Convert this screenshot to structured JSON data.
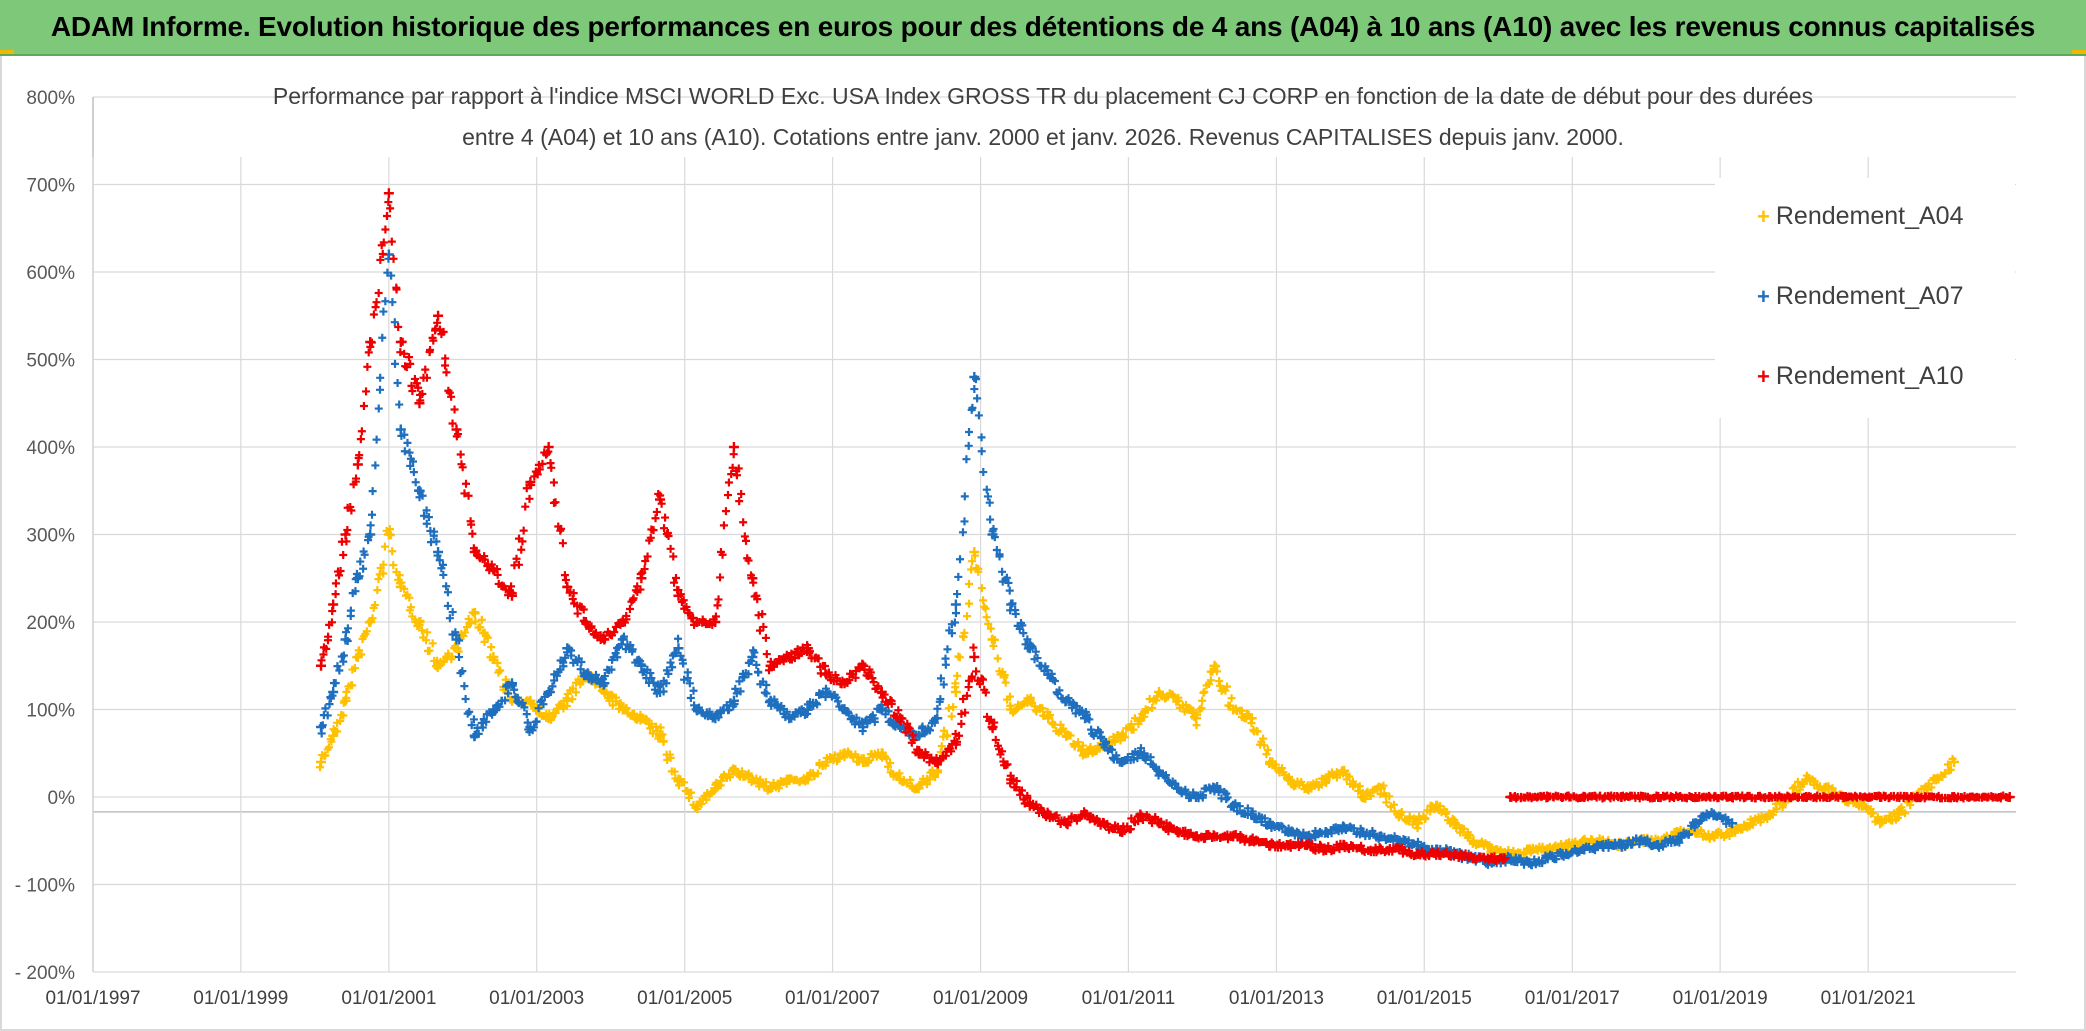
{
  "banner": {
    "title": "ADAM Informe. Evolution historique des performances en euros pour des détentions de 4 ans (A04) à 10 ans (A10) avec les revenus connus capitalisés"
  },
  "colors": {
    "banner_bg": "#7ec87a",
    "A04": "#ffc000",
    "A07": "#1f6fbf",
    "A10": "#ee0000",
    "grid": "#d9d9d9",
    "axis_text": "#595959"
  },
  "chart_data": {
    "type": "scatter",
    "title_lines": [
      "Performance par rapport à l'indice MSCI WORLD Exc. USA Index GROSS TR  du placement CJ CORP en fonction de la date de début pour des durées",
      "entre 4 (A04) et 10 ans (A10). Cotations entre janv. 2000 et janv. 2026. Revenus CAPITALISES depuis janv. 2000."
    ],
    "xlabel": "",
    "ylabel": "",
    "x_ticks": [
      "01/01/1997",
      "01/01/1999",
      "01/01/2001",
      "01/01/2003",
      "01/01/2005",
      "01/01/2007",
      "01/01/2009",
      "01/01/2011",
      "01/01/2013",
      "01/01/2015",
      "01/01/2017",
      "01/01/2019",
      "01/01/2021"
    ],
    "y_ticks": [
      "800%",
      "700%",
      "600%",
      "500%",
      "400%",
      "300%",
      "200%",
      "100%",
      "0%",
      "- 100%",
      "- 200%"
    ],
    "xlim": [
      "1997-01-01",
      "2023-01-01"
    ],
    "ylim": [
      -200,
      800
    ],
    "y_unit": "%",
    "grid": true,
    "legend_position": "top-right",
    "marker": "+",
    "series": [
      {
        "name": "Rendement_A04",
        "color": "#ffc000",
        "points": [
          [
            "2000-02-01",
            40
          ],
          [
            "2000-04-01",
            70
          ],
          [
            "2000-06-01",
            110
          ],
          [
            "2000-08-01",
            160
          ],
          [
            "2000-10-01",
            200
          ],
          [
            "2001-01-01",
            300
          ],
          [
            "2001-03-01",
            240
          ],
          [
            "2001-06-01",
            200
          ],
          [
            "2001-09-01",
            150
          ],
          [
            "2001-12-01",
            170
          ],
          [
            "2002-03-01",
            210
          ],
          [
            "2002-06-01",
            160
          ],
          [
            "2002-09-01",
            110
          ],
          [
            "2002-12-01",
            110
          ],
          [
            "2003-03-01",
            90
          ],
          [
            "2003-06-01",
            110
          ],
          [
            "2003-09-01",
            140
          ],
          [
            "2003-12-01",
            120
          ],
          [
            "2004-03-01",
            100
          ],
          [
            "2004-06-01",
            90
          ],
          [
            "2004-09-01",
            70
          ],
          [
            "2004-12-01",
            20
          ],
          [
            "2005-03-01",
            -10
          ],
          [
            "2005-06-01",
            10
          ],
          [
            "2005-09-01",
            30
          ],
          [
            "2005-12-01",
            20
          ],
          [
            "2006-03-01",
            10
          ],
          [
            "2006-06-01",
            20
          ],
          [
            "2006-09-01",
            20
          ],
          [
            "2006-12-01",
            40
          ],
          [
            "2007-03-01",
            50
          ],
          [
            "2007-06-01",
            40
          ],
          [
            "2007-09-01",
            50
          ],
          [
            "2007-12-01",
            20
          ],
          [
            "2008-03-01",
            10
          ],
          [
            "2008-06-01",
            30
          ],
          [
            "2008-09-01",
            120
          ],
          [
            "2008-12-01",
            280
          ],
          [
            "2009-03-01",
            180
          ],
          [
            "2009-06-01",
            100
          ],
          [
            "2009-09-01",
            110
          ],
          [
            "2009-12-01",
            90
          ],
          [
            "2010-03-01",
            70
          ],
          [
            "2010-06-01",
            50
          ],
          [
            "2010-09-01",
            60
          ],
          [
            "2010-12-01",
            70
          ],
          [
            "2011-03-01",
            90
          ],
          [
            "2011-06-01",
            120
          ],
          [
            "2011-09-01",
            110
          ],
          [
            "2011-12-01",
            90
          ],
          [
            "2012-03-01",
            150
          ],
          [
            "2012-06-01",
            100
          ],
          [
            "2012-09-01",
            90
          ],
          [
            "2012-12-01",
            40
          ],
          [
            "2013-03-01",
            20
          ],
          [
            "2013-06-01",
            10
          ],
          [
            "2013-09-01",
            20
          ],
          [
            "2013-12-01",
            30
          ],
          [
            "2014-03-01",
            0
          ],
          [
            "2014-06-01",
            10
          ],
          [
            "2014-09-01",
            -20
          ],
          [
            "2014-12-01",
            -30
          ],
          [
            "2015-03-01",
            -10
          ],
          [
            "2015-06-01",
            -30
          ],
          [
            "2015-09-01",
            -50
          ],
          [
            "2015-12-01",
            -60
          ],
          [
            "2016-03-01",
            -65
          ],
          [
            "2016-06-01",
            -60
          ],
          [
            "2016-09-01",
            -60
          ],
          [
            "2016-12-01",
            -55
          ],
          [
            "2017-03-01",
            -50
          ],
          [
            "2017-06-01",
            -50
          ],
          [
            "2017-09-01",
            -55
          ],
          [
            "2017-12-01",
            -50
          ],
          [
            "2018-03-01",
            -50
          ],
          [
            "2018-06-01",
            -40
          ],
          [
            "2018-09-01",
            -40
          ],
          [
            "2018-12-01",
            -45
          ],
          [
            "2019-03-01",
            -40
          ],
          [
            "2019-06-01",
            -30
          ],
          [
            "2019-09-01",
            -20
          ],
          [
            "2019-12-01",
            0
          ],
          [
            "2020-03-01",
            20
          ],
          [
            "2020-06-01",
            10
          ],
          [
            "2020-09-01",
            0
          ],
          [
            "2020-12-01",
            -10
          ],
          [
            "2021-03-01",
            -30
          ],
          [
            "2021-06-01",
            -20
          ],
          [
            "2021-09-01",
            0
          ],
          [
            "2021-12-01",
            20
          ],
          [
            "2022-03-01",
            40
          ]
        ]
      },
      {
        "name": "Rendement_A07",
        "color": "#1f6fbf",
        "points": [
          [
            "2000-02-01",
            80
          ],
          [
            "2000-04-01",
            120
          ],
          [
            "2000-06-01",
            180
          ],
          [
            "2000-08-01",
            250
          ],
          [
            "2000-10-01",
            300
          ],
          [
            "2001-01-01",
            620
          ],
          [
            "2001-03-01",
            420
          ],
          [
            "2001-06-01",
            350
          ],
          [
            "2001-09-01",
            280
          ],
          [
            "2001-12-01",
            180
          ],
          [
            "2002-03-01",
            70
          ],
          [
            "2002-06-01",
            100
          ],
          [
            "2002-09-01",
            130
          ],
          [
            "2002-12-01",
            80
          ],
          [
            "2003-03-01",
            120
          ],
          [
            "2003-06-01",
            170
          ],
          [
            "2003-09-01",
            140
          ],
          [
            "2003-12-01",
            130
          ],
          [
            "2004-03-01",
            180
          ],
          [
            "2004-06-01",
            150
          ],
          [
            "2004-09-01",
            120
          ],
          [
            "2004-12-01",
            170
          ],
          [
            "2005-03-01",
            100
          ],
          [
            "2005-06-01",
            90
          ],
          [
            "2005-09-01",
            110
          ],
          [
            "2005-12-01",
            160
          ],
          [
            "2006-03-01",
            110
          ],
          [
            "2006-06-01",
            90
          ],
          [
            "2006-09-01",
            100
          ],
          [
            "2006-12-01",
            120
          ],
          [
            "2007-03-01",
            100
          ],
          [
            "2007-06-01",
            80
          ],
          [
            "2007-09-01",
            100
          ],
          [
            "2007-12-01",
            80
          ],
          [
            "2008-03-01",
            70
          ],
          [
            "2008-06-01",
            90
          ],
          [
            "2008-09-01",
            220
          ],
          [
            "2008-12-01",
            480
          ],
          [
            "2009-03-01",
            300
          ],
          [
            "2009-06-01",
            220
          ],
          [
            "2009-09-01",
            170
          ],
          [
            "2009-12-01",
            140
          ],
          [
            "2010-03-01",
            110
          ],
          [
            "2010-06-01",
            90
          ],
          [
            "2010-09-01",
            60
          ],
          [
            "2010-12-01",
            40
          ],
          [
            "2011-03-01",
            50
          ],
          [
            "2011-06-01",
            30
          ],
          [
            "2011-09-01",
            10
          ],
          [
            "2011-12-01",
            0
          ],
          [
            "2012-03-01",
            10
          ],
          [
            "2012-06-01",
            -10
          ],
          [
            "2012-09-01",
            -20
          ],
          [
            "2012-12-01",
            -30
          ],
          [
            "2013-03-01",
            -40
          ],
          [
            "2013-06-01",
            -45
          ],
          [
            "2013-09-01",
            -40
          ],
          [
            "2013-12-01",
            -35
          ],
          [
            "2014-03-01",
            -40
          ],
          [
            "2014-06-01",
            -45
          ],
          [
            "2014-09-01",
            -50
          ],
          [
            "2014-12-01",
            -55
          ],
          [
            "2015-03-01",
            -60
          ],
          [
            "2015-06-01",
            -65
          ],
          [
            "2015-09-01",
            -70
          ],
          [
            "2015-12-01",
            -75
          ],
          [
            "2016-03-01",
            -70
          ],
          [
            "2016-06-01",
            -75
          ],
          [
            "2016-09-01",
            -70
          ],
          [
            "2016-12-01",
            -65
          ],
          [
            "2017-03-01",
            -60
          ],
          [
            "2017-06-01",
            -55
          ],
          [
            "2017-09-01",
            -55
          ],
          [
            "2017-12-01",
            -50
          ],
          [
            "2018-03-01",
            -55
          ],
          [
            "2018-06-01",
            -50
          ],
          [
            "2018-09-01",
            -30
          ],
          [
            "2018-12-01",
            -20
          ],
          [
            "2019-03-01",
            -30
          ]
        ]
      },
      {
        "name": "Rendement_A10",
        "color": "#ee0000",
        "points": [
          [
            "2000-02-01",
            150
          ],
          [
            "2000-04-01",
            220
          ],
          [
            "2000-06-01",
            300
          ],
          [
            "2000-08-01",
            380
          ],
          [
            "2000-10-01",
            520
          ],
          [
            "2001-01-01",
            690
          ],
          [
            "2001-03-01",
            520
          ],
          [
            "2001-06-01",
            450
          ],
          [
            "2001-09-01",
            550
          ],
          [
            "2001-12-01",
            420
          ],
          [
            "2002-03-01",
            280
          ],
          [
            "2002-06-01",
            260
          ],
          [
            "2002-09-01",
            230
          ],
          [
            "2002-12-01",
            360
          ],
          [
            "2003-03-01",
            400
          ],
          [
            "2003-06-01",
            240
          ],
          [
            "2003-09-01",
            200
          ],
          [
            "2003-12-01",
            180
          ],
          [
            "2004-03-01",
            200
          ],
          [
            "2004-06-01",
            250
          ],
          [
            "2004-09-01",
            340
          ],
          [
            "2004-12-01",
            230
          ],
          [
            "2005-03-01",
            200
          ],
          [
            "2005-06-01",
            200
          ],
          [
            "2005-09-01",
            400
          ],
          [
            "2005-12-01",
            250
          ],
          [
            "2006-03-01",
            150
          ],
          [
            "2006-06-01",
            160
          ],
          [
            "2006-09-01",
            170
          ],
          [
            "2006-12-01",
            140
          ],
          [
            "2007-03-01",
            130
          ],
          [
            "2007-06-01",
            150
          ],
          [
            "2007-09-01",
            120
          ],
          [
            "2007-12-01",
            90
          ],
          [
            "2008-03-01",
            50
          ],
          [
            "2008-06-01",
            40
          ],
          [
            "2008-09-01",
            60
          ],
          [
            "2008-12-01",
            160
          ],
          [
            "2009-03-01",
            80
          ],
          [
            "2009-06-01",
            20
          ],
          [
            "2009-09-01",
            -10
          ],
          [
            "2009-12-01",
            -20
          ],
          [
            "2010-03-01",
            -30
          ],
          [
            "2010-06-01",
            -20
          ],
          [
            "2010-09-01",
            -30
          ],
          [
            "2010-12-01",
            -40
          ],
          [
            "2011-03-01",
            -20
          ],
          [
            "2011-06-01",
            -30
          ],
          [
            "2011-09-01",
            -40
          ],
          [
            "2011-12-01",
            -45
          ],
          [
            "2012-03-01",
            -45
          ],
          [
            "2012-06-01",
            -45
          ],
          [
            "2012-09-01",
            -50
          ],
          [
            "2012-12-01",
            -55
          ],
          [
            "2013-03-01",
            -55
          ],
          [
            "2013-06-01",
            -55
          ],
          [
            "2013-09-01",
            -60
          ],
          [
            "2013-12-01",
            -55
          ],
          [
            "2014-03-01",
            -60
          ],
          [
            "2014-06-01",
            -60
          ],
          [
            "2014-09-01",
            -60
          ],
          [
            "2014-12-01",
            -65
          ],
          [
            "2015-03-01",
            -65
          ],
          [
            "2015-06-01",
            -65
          ],
          [
            "2015-09-01",
            -70
          ],
          [
            "2015-12-01",
            -70
          ],
          [
            "2016-02-01",
            -70
          ],
          [
            "2016-03-01",
            0
          ],
          [
            "2016-09-01",
            0
          ],
          [
            "2017-03-01",
            0
          ],
          [
            "2017-09-01",
            0
          ],
          [
            "2018-03-01",
            0
          ],
          [
            "2018-09-01",
            0
          ],
          [
            "2019-03-01",
            0
          ],
          [
            "2019-09-01",
            0
          ],
          [
            "2020-03-01",
            0
          ],
          [
            "2020-09-01",
            0
          ],
          [
            "2021-03-01",
            0
          ],
          [
            "2021-09-01",
            0
          ],
          [
            "2022-03-01",
            0
          ],
          [
            "2022-12-01",
            0
          ]
        ]
      }
    ]
  }
}
